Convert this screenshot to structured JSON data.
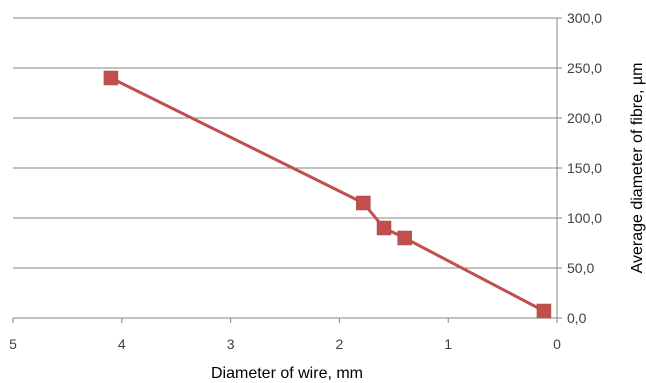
{
  "chart_data": {
    "type": "line",
    "xlabel": "Diameter of wire, mm",
    "ylabel": "Average diameter of fibre,  µm",
    "x_axis": {
      "reversed": true,
      "range": [
        0,
        5
      ],
      "ticks": [
        "5",
        "4",
        "3",
        "2",
        "1",
        "0"
      ]
    },
    "y_axis": {
      "position": "right",
      "range": [
        0,
        300
      ],
      "ticks": [
        "0,0",
        "50,0",
        "100,0",
        "150,0",
        "200,0",
        "250,0",
        "300,0"
      ]
    },
    "grid": {
      "horizontal": true,
      "vertical": false
    },
    "series": [
      {
        "marker": "square",
        "color": "#C0504D",
        "points": [
          {
            "x": 4.1,
            "y": 240
          },
          {
            "x": 1.78,
            "y": 115
          },
          {
            "x": 1.59,
            "y": 90
          },
          {
            "x": 1.4,
            "y": 80
          },
          {
            "x": 0.12,
            "y": 7
          }
        ]
      }
    ]
  }
}
